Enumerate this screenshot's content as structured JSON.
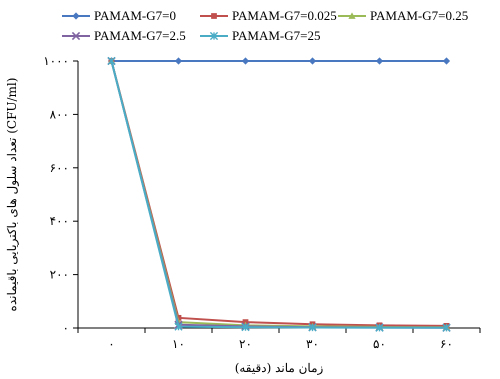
{
  "chart_data": {
    "type": "line",
    "title": "",
    "xlabel": "زمان ماند (دقیقه)",
    "ylabel": "تعداد سلول های باکتریایی باقیمانده (CFU/ml)",
    "categories": [
      "۰",
      "۱۰",
      "۲۰",
      "۳۰",
      "۵۰",
      "۶۰"
    ],
    "y_ticks": [
      "۰",
      "۲۰۰",
      "۴۰۰",
      "۶۰۰",
      "۸۰۰",
      "۱۰۰۰"
    ],
    "y_tick_values": [
      0,
      200,
      400,
      600,
      800,
      1000
    ],
    "ylim": [
      0,
      1000
    ],
    "grid": false,
    "legend_position": "top",
    "series": [
      {
        "name": "PAMAM-G7=0",
        "color": "#4a78c0",
        "marker": "diamond",
        "values": [
          1000,
          1000,
          1000,
          1000,
          1000,
          1000
        ]
      },
      {
        "name": "PAMAM-G7=0.025",
        "color": "#c0504d",
        "marker": "square",
        "values": [
          1000,
          38,
          22,
          14,
          10,
          8
        ]
      },
      {
        "name": "PAMAM-G7=0.25",
        "color": "#9bbb59",
        "marker": "triangle",
        "values": [
          1000,
          22,
          10,
          6,
          4,
          3
        ]
      },
      {
        "name": "PAMAM-G7=2.5",
        "color": "#8064a2",
        "marker": "x",
        "values": [
          1000,
          12,
          6,
          3,
          2,
          1
        ]
      },
      {
        "name": "PAMAM-G7=25",
        "color": "#4bacc6",
        "marker": "star",
        "values": [
          1000,
          5,
          3,
          2,
          1,
          1
        ]
      }
    ]
  }
}
